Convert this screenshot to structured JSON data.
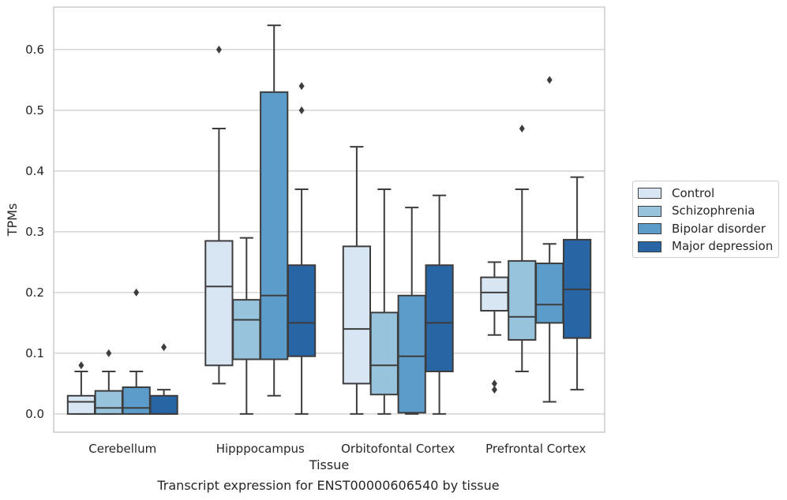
{
  "caption": "Transcript expression for ENST00000606540 by tissue",
  "chart_data": {
    "type": "box",
    "xlabel": "Tissue",
    "ylabel": "TPMs",
    "ylim": [
      -0.03,
      0.67
    ],
    "yticks": [
      0.0,
      0.1,
      0.2,
      0.3,
      0.4,
      0.5,
      0.6
    ],
    "ytick_labels": [
      "0.0",
      "0.1",
      "0.2",
      "0.3",
      "0.4",
      "0.5",
      "0.6"
    ],
    "grid": true,
    "legend_position": "right",
    "categories": [
      "Cerebellum",
      "Hipppocampus",
      "Orbitofontal Cortex",
      "Prefrontal Cortex"
    ],
    "series": [
      {
        "name": "Control",
        "color": "#d8e6f3",
        "boxes": [
          {
            "whislo": 0.0,
            "q1": 0.0,
            "med": 0.02,
            "q3": 0.03,
            "whishi": 0.07,
            "fliers": [
              0.08
            ]
          },
          {
            "whislo": 0.05,
            "q1": 0.08,
            "med": 0.21,
            "q3": 0.285,
            "whishi": 0.47,
            "fliers": [
              0.6
            ]
          },
          {
            "whislo": 0.0,
            "q1": 0.05,
            "med": 0.14,
            "q3": 0.276,
            "whishi": 0.44,
            "fliers": []
          },
          {
            "whislo": 0.13,
            "q1": 0.17,
            "med": 0.2,
            "q3": 0.225,
            "whishi": 0.25,
            "fliers": [
              0.04,
              0.05
            ]
          }
        ]
      },
      {
        "name": "Schizophrenia",
        "color": "#98c3dc",
        "boxes": [
          {
            "whislo": 0.0,
            "q1": 0.0,
            "med": 0.01,
            "q3": 0.038,
            "whishi": 0.07,
            "fliers": [
              0.1
            ]
          },
          {
            "whislo": 0.0,
            "q1": 0.09,
            "med": 0.155,
            "q3": 0.188,
            "whishi": 0.29,
            "fliers": []
          },
          {
            "whislo": 0.0,
            "q1": 0.032,
            "med": 0.08,
            "q3": 0.167,
            "whishi": 0.37,
            "fliers": []
          },
          {
            "whislo": 0.07,
            "q1": 0.122,
            "med": 0.16,
            "q3": 0.252,
            "whishi": 0.37,
            "fliers": [
              0.47
            ]
          }
        ]
      },
      {
        "name": "Bipolar disorder",
        "color": "#5b9cca",
        "boxes": [
          {
            "whislo": 0.0,
            "q1": 0.0,
            "med": 0.01,
            "q3": 0.044,
            "whishi": 0.07,
            "fliers": [
              0.2
            ]
          },
          {
            "whislo": 0.03,
            "q1": 0.09,
            "med": 0.195,
            "q3": 0.53,
            "whishi": 0.64,
            "fliers": []
          },
          {
            "whislo": 0.0,
            "q1": 0.002,
            "med": 0.095,
            "q3": 0.195,
            "whishi": 0.34,
            "fliers": []
          },
          {
            "whislo": 0.02,
            "q1": 0.15,
            "med": 0.18,
            "q3": 0.248,
            "whishi": 0.28,
            "fliers": [
              0.55
            ]
          }
        ]
      },
      {
        "name": "Major depression",
        "color": "#2865a4",
        "boxes": [
          {
            "whislo": 0.0,
            "q1": 0.0,
            "med": 0.0,
            "q3": 0.03,
            "whishi": 0.04,
            "fliers": [
              0.11
            ]
          },
          {
            "whislo": 0.0,
            "q1": 0.095,
            "med": 0.15,
            "q3": 0.245,
            "whishi": 0.37,
            "fliers": [
              0.5,
              0.54
            ]
          },
          {
            "whislo": 0.0,
            "q1": 0.07,
            "med": 0.15,
            "q3": 0.245,
            "whishi": 0.36,
            "fliers": []
          },
          {
            "whislo": 0.04,
            "q1": 0.125,
            "med": 0.205,
            "q3": 0.287,
            "whishi": 0.39,
            "fliers": []
          }
        ]
      }
    ]
  }
}
